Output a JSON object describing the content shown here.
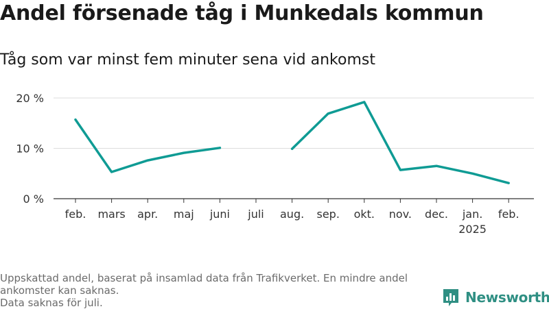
{
  "title": "Andel försenade tåg i Munkedals kommun",
  "subtitle": "Tåg som var minst fem minuter sena vid ankomst",
  "footnote": {
    "line1": "Uppskattad andel, baserat på insamlad data från Trafikverket. En mindre andel ankomster kan saknas.",
    "line2": "Data saknas för juli."
  },
  "logo": {
    "text": "Newsworthy",
    "icon": "bar-chart-logo-icon",
    "color": "#2f8f83"
  },
  "chart_data": {
    "type": "line",
    "title": "Andel försenade tåg i Munkedals kommun",
    "subtitle": "Tåg som var minst fem minuter sena vid ankomst",
    "xlabel": "",
    "ylabel": "",
    "categories": [
      "feb.",
      "mars",
      "apr.",
      "maj",
      "juni",
      "juli",
      "aug.",
      "sep.",
      "okt.",
      "nov.",
      "dec.",
      "jan.",
      "feb."
    ],
    "year_labels": [
      "",
      "",
      "",
      "",
      "",
      "",
      "",
      "",
      "",
      "",
      "",
      "2025",
      ""
    ],
    "series": [
      {
        "values": [
          15.7,
          5.3,
          7.6,
          9.1,
          10.1,
          null,
          9.9,
          16.9,
          19.2,
          5.7,
          6.5,
          5.0,
          3.1
        ],
        "color": "#0f9b94"
      }
    ],
    "yticks": [
      0,
      10,
      20
    ],
    "ytick_labels": [
      "0 %",
      "10 %",
      "20 %"
    ],
    "ylim": [
      0,
      20
    ],
    "grid": true,
    "legend": "none"
  }
}
